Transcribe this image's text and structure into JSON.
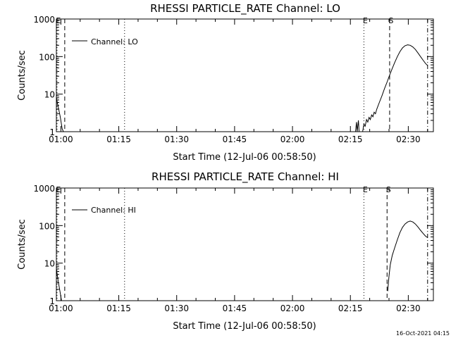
{
  "chart_data": [
    {
      "type": "line",
      "title": "RHESSI PARTICLE_RATE Channel: LO",
      "xlabel": "Start Time (12-Jul-06 00:58:50)",
      "ylabel": "Counts/sec",
      "yscale": "log",
      "ylim": [
        1,
        1000
      ],
      "xlim": [
        "00:58:50",
        "02:36:30"
      ],
      "x_ticks": [
        "01:00",
        "01:15",
        "01:30",
        "01:45",
        "02:00",
        "02:15",
        "02:30"
      ],
      "y_ticks": [
        "1",
        "10",
        "100",
        "1000"
      ],
      "legend": {
        "position": "top-left",
        "label": "Channel: LO"
      },
      "series": [
        {
          "name": "Channel: LO",
          "color": "#000000",
          "points": [
            [
              "00:58:50",
              8
            ],
            [
              "00:59:20",
              4.5
            ],
            [
              "00:59:50",
              2.5
            ],
            [
              "01:00:20",
              1.2
            ],
            [
              "01:00:40",
              1.0
            ]
          ]
        },
        {
          "name": "Channel: LO",
          "color": "#000000",
          "points": [
            [
              "02:16:20",
              1.0
            ],
            [
              "02:16:35",
              1.8
            ],
            [
              "02:16:45",
              1.0
            ],
            [
              "02:17:05",
              2.0
            ],
            [
              "02:17:15",
              1.0
            ],
            [
              "02:18:10",
              1.0
            ],
            [
              "02:18:30",
              1.6
            ],
            [
              "02:18:50",
              1.4
            ],
            [
              "02:19:10",
              2.1
            ],
            [
              "02:19:30",
              1.8
            ],
            [
              "02:19:50",
              2.4
            ],
            [
              "02:20:10",
              2.1
            ],
            [
              "02:20:30",
              2.8
            ],
            [
              "02:20:50",
              2.5
            ],
            [
              "02:21:10",
              3.3
            ],
            [
              "02:21:30",
              3.0
            ],
            [
              "02:21:50",
              4.0
            ],
            [
              "02:22:30",
              6.0
            ],
            [
              "02:23:10",
              9.0
            ],
            [
              "02:23:50",
              14
            ],
            [
              "02:24:30",
              21
            ],
            [
              "02:25:10",
              32
            ],
            [
              "02:25:50",
              48
            ],
            [
              "02:26:30",
              70
            ],
            [
              "02:27:10",
              100
            ],
            [
              "02:27:50",
              135
            ],
            [
              "02:28:30",
              170
            ],
            [
              "02:29:10",
              195
            ],
            [
              "02:29:50",
              205
            ],
            [
              "02:30:30",
              200
            ],
            [
              "02:31:10",
              180
            ],
            [
              "02:31:50",
              155
            ],
            [
              "02:32:30",
              125
            ],
            [
              "02:33:10",
              100
            ],
            [
              "02:33:50",
              80
            ],
            [
              "02:34:30",
              65
            ],
            [
              "02:35:00",
              58
            ]
          ]
        }
      ],
      "markers": [
        {
          "label": "E",
          "time": "00:59:00",
          "style": "dotted"
        },
        {
          "label": "",
          "time": "01:01:00",
          "style": "dashed"
        },
        {
          "label": "",
          "time": "01:16:30",
          "style": "dotted"
        },
        {
          "label": "E",
          "time": "02:18:30",
          "style": "dotted"
        },
        {
          "label": "S",
          "time": "02:25:10",
          "style": "dashed"
        },
        {
          "label": "",
          "time": "02:35:00",
          "style": "dashdot"
        }
      ]
    },
    {
      "type": "line",
      "title": "RHESSI PARTICLE_RATE Channel: HI",
      "xlabel": "Start Time (12-Jul-06 00:58:50)",
      "ylabel": "Counts/sec",
      "yscale": "log",
      "ylim": [
        1,
        1000
      ],
      "xlim": [
        "00:58:50",
        "02:36:30"
      ],
      "x_ticks": [
        "01:00",
        "01:15",
        "01:30",
        "01:45",
        "02:00",
        "02:15",
        "02:30"
      ],
      "y_ticks": [
        "1",
        "10",
        "100",
        "1000"
      ],
      "legend": {
        "position": "top-left",
        "label": "Channel: HI"
      },
      "series": [
        {
          "name": "Channel: HI",
          "color": "#000000",
          "points": [
            [
              "00:58:50",
              7
            ],
            [
              "00:59:20",
              3.2
            ],
            [
              "00:59:50",
              1.6
            ],
            [
              "01:00:10",
              1.0
            ]
          ]
        },
        {
          "name": "Channel: HI",
          "color": "#000000",
          "points": [
            [
              "02:24:40",
              1.8
            ],
            [
              "02:25:00",
              4.5
            ],
            [
              "02:25:20",
              9.0
            ],
            [
              "02:25:50",
              16
            ],
            [
              "02:26:30",
              26
            ],
            [
              "02:27:10",
              42
            ],
            [
              "02:27:50",
              65
            ],
            [
              "02:28:30",
              90
            ],
            [
              "02:29:10",
              110
            ],
            [
              "02:29:50",
              125
            ],
            [
              "02:30:30",
              132
            ],
            [
              "02:31:10",
              125
            ],
            [
              "02:31:50",
              110
            ],
            [
              "02:32:30",
              92
            ],
            [
              "02:33:10",
              75
            ],
            [
              "02:33:50",
              62
            ],
            [
              "02:34:30",
              52
            ],
            [
              "02:35:00",
              48
            ]
          ]
        }
      ],
      "markers": [
        {
          "label": "E",
          "time": "00:59:00",
          "style": "dotted"
        },
        {
          "label": "",
          "time": "01:01:00",
          "style": "dashed"
        },
        {
          "label": "",
          "time": "01:16:30",
          "style": "dotted"
        },
        {
          "label": "E",
          "time": "02:18:30",
          "style": "dotted"
        },
        {
          "label": "S",
          "time": "02:24:30",
          "style": "dashed"
        },
        {
          "label": "",
          "time": "02:35:00",
          "style": "dashdot"
        }
      ]
    }
  ],
  "footer": {
    "timestamp": "16-Oct-2021 04:15"
  }
}
